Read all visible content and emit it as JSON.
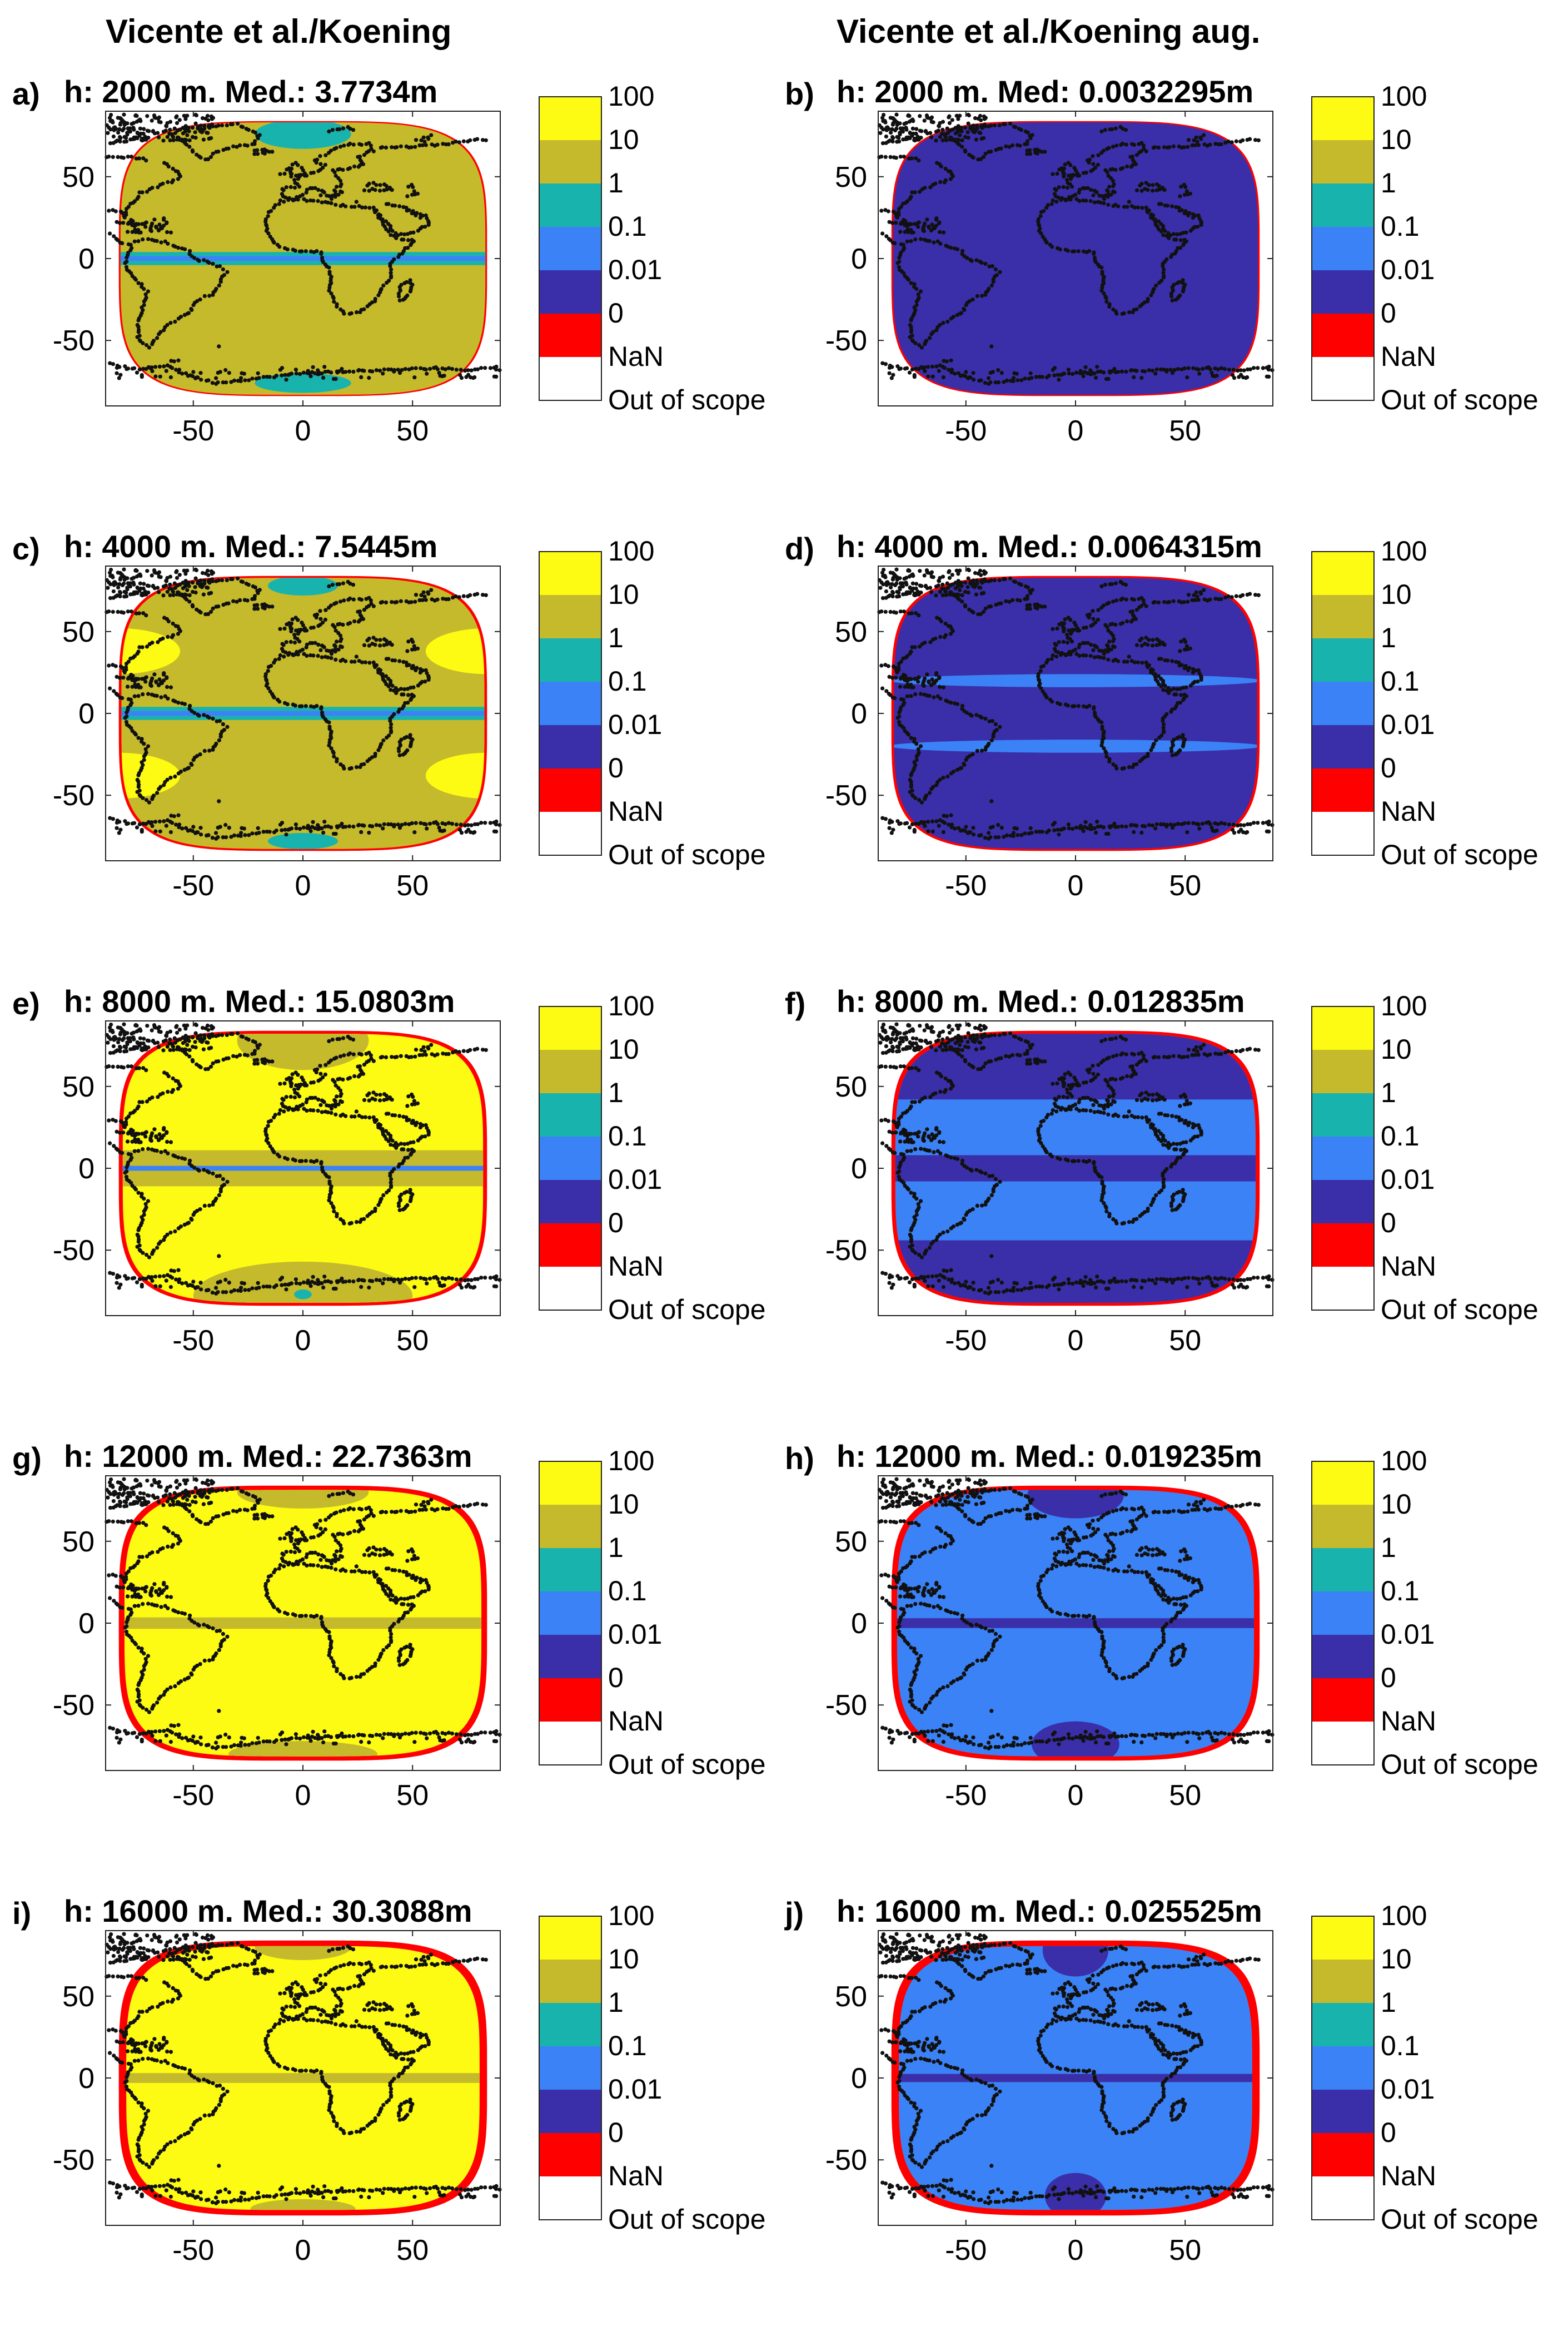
{
  "column_titles": [
    "Vicente et al./Koening",
    "Vicente et al./Koening aug."
  ],
  "colors": {
    "out_of_scope": "#ffffff",
    "nan": "#ff0000",
    "zero": "#3a2fa8",
    "c001": "#3b82f6",
    "c01": "#19b3ae",
    "c1": "#c5ba2b",
    "c10": "#fdfb13",
    "coast": "#111111"
  },
  "colorbar": {
    "labels": [
      "100",
      "10",
      "1",
      "0.1",
      "0.01",
      "0",
      "NaN",
      "Out of scope"
    ],
    "colors": [
      "#fdfb13",
      "#c5ba2b",
      "#19b3ae",
      "#3b82f6",
      "#3a2fa8",
      "#ff0000",
      "#ffffff"
    ]
  },
  "chart_data": [
    {
      "type": "heatmap",
      "letter": "a)",
      "title": "h: 2000 m. Med.: 3.7734m",
      "xlim": [
        -90,
        90
      ],
      "ylim": [
        -90,
        90
      ],
      "xticks": [
        -50,
        0,
        50
      ],
      "yticks": [
        50,
        0,
        -50
      ],
      "base": "c1",
      "ring": "nan",
      "ring_width": 0.8,
      "bands": [
        {
          "y0": -1.5,
          "y1": 1.5,
          "c": "c001"
        },
        {
          "y0": 1.5,
          "y1": 4,
          "c": "c01"
        },
        {
          "y0": -4,
          "y1": -1.5,
          "c": "c01"
        }
      ],
      "blobs": [
        {
          "cx": 0,
          "cy": 76,
          "rx": 22,
          "ry": 9,
          "c": "c01"
        },
        {
          "cx": 0,
          "cy": -76,
          "rx": 22,
          "ry": 6,
          "c": "c01"
        }
      ]
    },
    {
      "type": "heatmap",
      "letter": "b)",
      "title": "h: 2000 m. Med: 0.0032295m",
      "xlim": [
        -90,
        90
      ],
      "ylim": [
        -90,
        90
      ],
      "xticks": [
        -50,
        0,
        50
      ],
      "yticks": [
        50,
        0,
        -50
      ],
      "base": "zero",
      "ring": "nan",
      "ring_width": 0.8,
      "bands": [],
      "blobs": []
    },
    {
      "type": "heatmap",
      "letter": "c)",
      "title": "h: 4000 m. Med.: 7.5445m",
      "xlim": [
        -90,
        90
      ],
      "ylim": [
        -90,
        90
      ],
      "xticks": [
        -50,
        0,
        50
      ],
      "yticks": [
        50,
        0,
        -50
      ],
      "base": "c1",
      "ring": "nan",
      "ring_width": 1.2,
      "bands": [
        {
          "y0": -1.5,
          "y1": 1.5,
          "c": "c001"
        },
        {
          "y0": 1.5,
          "y1": 4,
          "c": "c01"
        },
        {
          "y0": -4,
          "y1": -1.5,
          "c": "c01"
        }
      ],
      "blobs": [
        {
          "cx": -84,
          "cy": 38,
          "rx": 28,
          "ry": 14,
          "c": "c10"
        },
        {
          "cx": 84,
          "cy": 38,
          "rx": 28,
          "ry": 14,
          "c": "c10"
        },
        {
          "cx": -84,
          "cy": -38,
          "rx": 28,
          "ry": 14,
          "c": "c10"
        },
        {
          "cx": 84,
          "cy": -38,
          "rx": 28,
          "ry": 14,
          "c": "c10"
        },
        {
          "cx": 0,
          "cy": 78,
          "rx": 16,
          "ry": 6,
          "c": "c01"
        },
        {
          "cx": 0,
          "cy": -78,
          "rx": 16,
          "ry": 5,
          "c": "c01"
        }
      ]
    },
    {
      "type": "heatmap",
      "letter": "d)",
      "title": "h: 4000 m. Med.: 0.0064315m",
      "xlim": [
        -90,
        90
      ],
      "ylim": [
        -90,
        90
      ],
      "xticks": [
        -50,
        0,
        50
      ],
      "yticks": [
        50,
        0,
        -50
      ],
      "base": "zero",
      "ring": "nan",
      "ring_width": 1.2,
      "bands": [],
      "blobs": [
        {
          "cx": 0,
          "cy": 20,
          "rx": 85,
          "ry": 4,
          "c": "c001"
        },
        {
          "cx": 0,
          "cy": -20,
          "rx": 85,
          "ry": 4,
          "c": "c001"
        }
      ]
    },
    {
      "type": "heatmap",
      "letter": "e)",
      "title": "h: 8000 m. Med.: 15.0803m",
      "xlim": [
        -90,
        90
      ],
      "ylim": [
        -90,
        90
      ],
      "xticks": [
        -50,
        0,
        50
      ],
      "yticks": [
        50,
        0,
        -50
      ],
      "base": "c10",
      "ring": "nan",
      "ring_width": 1.8,
      "bands": [
        {
          "y0": -11,
          "y1": 11,
          "c": "c1"
        },
        {
          "y0": -1.5,
          "y1": 1.5,
          "c": "c001"
        }
      ],
      "blobs": [
        {
          "cx": 0,
          "cy": 78,
          "rx": 30,
          "ry": 18,
          "c": "c1"
        },
        {
          "cx": 0,
          "cy": -78,
          "rx": 50,
          "ry": 21,
          "c": "c1"
        },
        {
          "cx": 0,
          "cy": -77,
          "rx": 4,
          "ry": 3,
          "c": "c01"
        }
      ]
    },
    {
      "type": "heatmap",
      "letter": "f)",
      "title": "h: 8000 m. Med.: 0.012835m",
      "xlim": [
        -90,
        90
      ],
      "ylim": [
        -90,
        90
      ],
      "xticks": [
        -50,
        0,
        50
      ],
      "yticks": [
        50,
        0,
        -50
      ],
      "base": "c001",
      "ring": "nan",
      "ring_width": 1.8,
      "bands": [
        {
          "y0": -8,
          "y1": 8,
          "c": "zero"
        },
        {
          "y0": 42,
          "y1": 90,
          "c": "zero"
        },
        {
          "y0": -90,
          "y1": -44,
          "c": "zero"
        }
      ],
      "blobs": [
        {
          "cx": -85,
          "cy": 64,
          "rx": 40,
          "ry": 18,
          "c": "c001"
        },
        {
          "cx": 85,
          "cy": 64,
          "rx": 40,
          "ry": 18,
          "c": "c001"
        }
      ]
    },
    {
      "type": "heatmap",
      "letter": "g)",
      "title": "h: 12000 m. Med.: 22.7363m",
      "xlim": [
        -90,
        90
      ],
      "ylim": [
        -90,
        90
      ],
      "xticks": [
        -50,
        0,
        50
      ],
      "yticks": [
        50,
        0,
        -50
      ],
      "base": "c10",
      "ring": "nan",
      "ring_width": 2.6,
      "bands": [
        {
          "y0": -3.5,
          "y1": 3.5,
          "c": "c1"
        }
      ],
      "blobs": [
        {
          "cx": 0,
          "cy": 80,
          "rx": 30,
          "ry": 10,
          "c": "c1"
        },
        {
          "cx": 0,
          "cy": -80,
          "rx": 34,
          "ry": 8,
          "c": "c1"
        }
      ]
    },
    {
      "type": "heatmap",
      "letter": "h)",
      "title": "h: 12000 m. Med.: 0.019235m",
      "xlim": [
        -90,
        90
      ],
      "ylim": [
        -90,
        90
      ],
      "xticks": [
        -50,
        0,
        50
      ],
      "yticks": [
        50,
        0,
        -50
      ],
      "base": "c001",
      "ring": "nan",
      "ring_width": 2.6,
      "bands": [
        {
          "y0": -3,
          "y1": 3,
          "c": "zero"
        }
      ],
      "blobs": [
        {
          "cx": 0,
          "cy": 78,
          "rx": 22,
          "ry": 14,
          "c": "zero"
        },
        {
          "cx": 0,
          "cy": -74,
          "rx": 20,
          "ry": 14,
          "c": "zero"
        }
      ]
    },
    {
      "type": "heatmap",
      "letter": "i)",
      "title": "h: 16000 m. Med.: 30.3088m",
      "xlim": [
        -90,
        90
      ],
      "ylim": [
        -90,
        90
      ],
      "xticks": [
        -50,
        0,
        50
      ],
      "yticks": [
        50,
        0,
        -50
      ],
      "base": "c10",
      "ring": "nan",
      "ring_width": 3.4,
      "bands": [
        {
          "y0": -3,
          "y1": 3,
          "c": "c1"
        }
      ],
      "blobs": [
        {
          "cx": 0,
          "cy": 80,
          "rx": 22,
          "ry": 8,
          "c": "c1"
        },
        {
          "cx": 0,
          "cy": -80,
          "rx": 24,
          "ry": 6,
          "c": "c1"
        }
      ]
    },
    {
      "type": "heatmap",
      "letter": "j)",
      "title": "h: 16000 m. Med.: 0.025525m",
      "xlim": [
        -90,
        90
      ],
      "ylim": [
        -90,
        90
      ],
      "xticks": [
        -50,
        0,
        50
      ],
      "yticks": [
        50,
        0,
        -50
      ],
      "base": "c001",
      "ring": "nan",
      "ring_width": 3.4,
      "bands": [
        {
          "y0": -2.5,
          "y1": 2.5,
          "c": "zero"
        }
      ],
      "blobs": [
        {
          "cx": 0,
          "cy": 78,
          "rx": 15,
          "ry": 16,
          "c": "zero"
        },
        {
          "cx": 0,
          "cy": -72,
          "rx": 14,
          "ry": 14,
          "c": "zero"
        }
      ]
    }
  ]
}
